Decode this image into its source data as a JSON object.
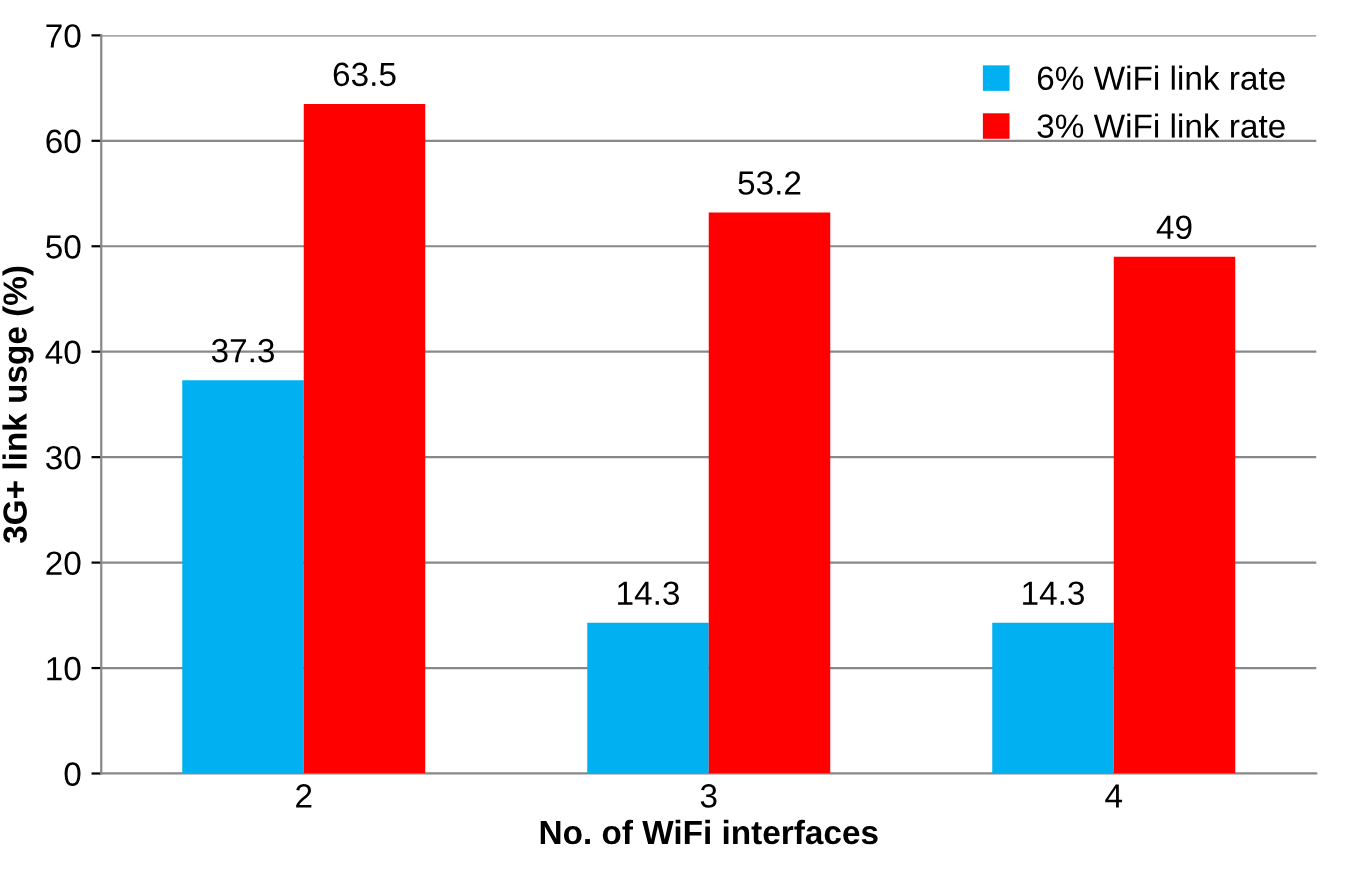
{
  "chart_data": {
    "type": "bar",
    "xlabel": "No. of WiFi interfaces",
    "ylabel": "3G+ link usge (%)",
    "categories": [
      "2",
      "3",
      "4"
    ],
    "series": [
      {
        "name": "6% WiFi link rate",
        "color": "#00b0f0",
        "values": [
          37.3,
          14.3,
          14.3
        ]
      },
      {
        "name": "3% WiFi link rate",
        "color": "#ff0000",
        "values": [
          63.5,
          53.2,
          49
        ]
      }
    ],
    "ylim": [
      0,
      70
    ],
    "yticks": [
      0,
      10,
      20,
      30,
      40,
      50,
      60,
      70
    ],
    "grid": "y",
    "legend": "top right",
    "data_labels": true
  }
}
